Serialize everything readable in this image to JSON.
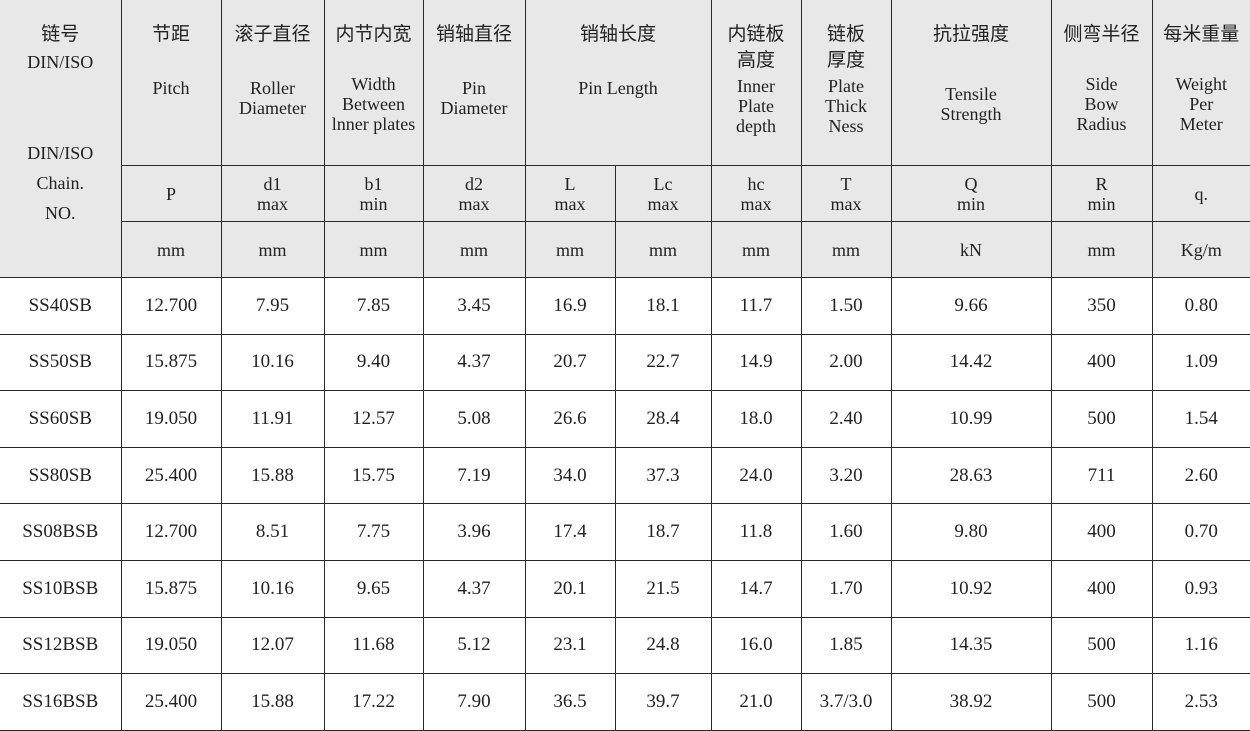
{
  "header": {
    "chain_no": {
      "zh": "链号",
      "line1": "DIN/ISO",
      "line2": "DIN/ISO",
      "line3": "Chain.",
      "line4": "NO."
    },
    "columns": [
      {
        "zh": "节距",
        "en": "Pitch",
        "sym": "P",
        "unit": "mm"
      },
      {
        "zh": "滚子直径",
        "en": "Roller\nDiameter",
        "sym": "d1\nmax",
        "unit": "mm"
      },
      {
        "zh": "内节内宽",
        "en": "Width\nBetween\nlnner plates",
        "sym": "b1\nmin",
        "unit": "mm"
      },
      {
        "zh": "销轴直径",
        "en": "Pin\nDiameter",
        "sym": "d2\nmax",
        "unit": "mm"
      },
      {
        "zh": "销轴长度",
        "en": "Pin Length",
        "subcols": [
          {
            "sym": "L\nmax",
            "unit": "mm"
          },
          {
            "sym": "Lc\nmax",
            "unit": "mm"
          }
        ]
      },
      {
        "zh": "内链板\n高度",
        "en": "Inner\nPlate\ndepth",
        "sym": "hc\nmax",
        "unit": "mm"
      },
      {
        "zh": "链板\n厚度",
        "en": "Plate\nThick\nNess",
        "sym": "T\nmax",
        "unit": "mm"
      },
      {
        "zh": "抗拉强度",
        "en": "Tensile\nStrength",
        "sym": "Q\nmin",
        "unit": "kN"
      },
      {
        "zh": "侧弯半径",
        "en": "Side\nBow\nRadius",
        "sym": "R\nmin",
        "unit": "mm"
      },
      {
        "zh": "每米重量",
        "en": "Weight\nPer\nMeter",
        "sym": "q.",
        "unit": "Kg/m"
      }
    ]
  },
  "rows": [
    [
      "SS40SB",
      "12.700",
      "7.95",
      "7.85",
      "3.45",
      "16.9",
      "18.1",
      "11.7",
      "1.50",
      "9.66",
      "350",
      "0.80"
    ],
    [
      "SS50SB",
      "15.875",
      "10.16",
      "9.40",
      "4.37",
      "20.7",
      "22.7",
      "14.9",
      "2.00",
      "14.42",
      "400",
      "1.09"
    ],
    [
      "SS60SB",
      "19.050",
      "11.91",
      "12.57",
      "5.08",
      "26.6",
      "28.4",
      "18.0",
      "2.40",
      "10.99",
      "500",
      "1.54"
    ],
    [
      "SS80SB",
      "25.400",
      "15.88",
      "15.75",
      "7.19",
      "34.0",
      "37.3",
      "24.0",
      "3.20",
      "28.63",
      "711",
      "2.60"
    ],
    [
      "SS08BSB",
      "12.700",
      "8.51",
      "7.75",
      "3.96",
      "17.4",
      "18.7",
      "11.8",
      "1.60",
      "9.80",
      "400",
      "0.70"
    ],
    [
      "SS10BSB",
      "15.875",
      "10.16",
      "9.65",
      "4.37",
      "20.1",
      "21.5",
      "14.7",
      "1.70",
      "10.92",
      "400",
      "0.93"
    ],
    [
      "SS12BSB",
      "19.050",
      "12.07",
      "11.68",
      "5.12",
      "23.1",
      "24.8",
      "16.0",
      "1.85",
      "14.35",
      "500",
      "1.16"
    ],
    [
      "SS16BSB",
      "25.400",
      "15.88",
      "17.22",
      "7.90",
      "36.5",
      "39.7",
      "21.0",
      "3.7/3.0",
      "38.92",
      "500",
      "2.53"
    ]
  ]
}
